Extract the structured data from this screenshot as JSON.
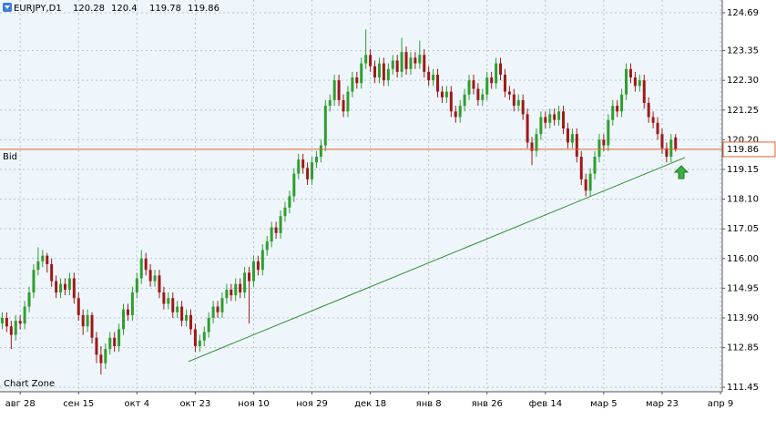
{
  "chart_data": {
    "type": "candlestick",
    "symbol": "EURJPY,D1",
    "watermark": "Chart Zone",
    "up_color": "#2f9e2f",
    "down_color": "#a01818",
    "grid": true,
    "xlim": [
      -0.5,
      160.4
    ],
    "ylim": [
      111.29,
      125.14
    ],
    "xticks": [
      {
        "value": 4,
        "label": "авг 28"
      },
      {
        "value": 17,
        "label": "сен 15"
      },
      {
        "value": 30,
        "label": "окт 4"
      },
      {
        "value": 43,
        "label": "окт 23"
      },
      {
        "value": 56,
        "label": "ноя 10"
      },
      {
        "value": 69,
        "label": "ноя 29"
      },
      {
        "value": 82,
        "label": "дек 18"
      },
      {
        "value": 95,
        "label": "янв 8"
      },
      {
        "value": 108,
        "label": "янв 26"
      },
      {
        "value": 121,
        "label": "фев 14"
      },
      {
        "value": 134,
        "label": "мар 5"
      },
      {
        "value": 147,
        "label": "мар 23"
      },
      {
        "value": 160,
        "label": "апр 9"
      }
    ],
    "yticks": [
      124.69,
      123.35,
      {
        "value": 122.3,
        "label": "122.30"
      },
      121.25,
      {
        "value": 120.2,
        "label": "120.20"
      },
      119.15,
      {
        "value": 118.1,
        "label": "118.10"
      },
      117.05,
      {
        "value": 116,
        "label": "116.00"
      },
      114.95,
      {
        "value": 113.9,
        "label": "113.90"
      },
      112.85,
      111.45
    ],
    "bid": {
      "label": "Bid",
      "value": 119.86,
      "color": "#e0632a"
    },
    "trendline": {
      "x": [
        41.5,
        152.1
      ],
      "y": [
        112.36,
        119.57
      ],
      "color": "#2e8b2e"
    },
    "candles": [
      [
        113.7,
        114.1,
        113.5,
        113.9
      ],
      [
        113.9,
        114.1,
        113.4,
        113.6
      ],
      [
        113.6,
        113.8,
        112.8,
        113.3
      ],
      [
        113.3,
        114.0,
        113.1,
        113.8
      ],
      [
        113.8,
        114.0,
        113.5,
        113.7
      ],
      [
        113.7,
        114.5,
        113.5,
        114.3
      ],
      [
        114.3,
        115.0,
        114.1,
        114.8
      ],
      [
        114.8,
        115.8,
        114.6,
        115.6
      ],
      [
        115.6,
        116.4,
        115.4,
        115.9
      ],
      [
        115.9,
        116.3,
        115.7,
        116.1
      ],
      [
        116.1,
        116.2,
        115.5,
        115.8
      ],
      [
        115.8,
        116.0,
        115.0,
        115.2
      ],
      [
        115.2,
        115.4,
        114.6,
        114.8
      ],
      [
        114.8,
        115.3,
        114.6,
        115.1
      ],
      [
        115.1,
        115.3,
        114.7,
        114.9
      ],
      [
        114.9,
        115.5,
        114.7,
        115.3
      ],
      [
        115.3,
        115.5,
        114.4,
        114.6
      ],
      [
        114.6,
        114.8,
        113.8,
        114.0
      ],
      [
        114.0,
        114.2,
        113.3,
        113.6
      ],
      [
        113.6,
        114.2,
        113.4,
        114.0
      ],
      [
        114.0,
        114.1,
        113.0,
        113.2
      ],
      [
        113.2,
        113.4,
        112.3,
        112.6
      ],
      [
        112.6,
        112.9,
        111.9,
        112.3
      ],
      [
        112.3,
        113.0,
        112.1,
        112.8
      ],
      [
        112.8,
        113.4,
        112.6,
        113.2
      ],
      [
        113.2,
        113.4,
        112.7,
        112.9
      ],
      [
        112.9,
        113.7,
        112.7,
        113.5
      ],
      [
        113.5,
        114.4,
        113.3,
        114.2
      ],
      [
        114.2,
        114.4,
        113.8,
        114.0
      ],
      [
        114.0,
        115.0,
        113.8,
        114.8
      ],
      [
        114.8,
        115.5,
        114.6,
        115.3
      ],
      [
        115.3,
        116.3,
        115.1,
        116.0
      ],
      [
        116.0,
        116.2,
        115.4,
        115.6
      ],
      [
        115.6,
        115.8,
        115.0,
        115.2
      ],
      [
        115.2,
        115.6,
        115.0,
        115.4
      ],
      [
        115.4,
        115.6,
        114.6,
        114.8
      ],
      [
        114.8,
        115.0,
        114.2,
        114.4
      ],
      [
        114.4,
        114.8,
        114.2,
        114.6
      ],
      [
        114.6,
        114.8,
        113.9,
        114.1
      ],
      [
        114.1,
        114.5,
        113.9,
        114.3
      ],
      [
        114.3,
        114.5,
        113.6,
        113.8
      ],
      [
        113.8,
        114.2,
        113.6,
        114.0
      ],
      [
        114.0,
        114.2,
        113.3,
        113.5
      ],
      [
        113.5,
        113.7,
        112.7,
        112.9
      ],
      [
        112.9,
        113.3,
        112.7,
        113.1
      ],
      [
        113.1,
        113.6,
        112.9,
        113.4
      ],
      [
        113.4,
        114.1,
        113.2,
        113.9
      ],
      [
        113.9,
        114.5,
        113.7,
        114.3
      ],
      [
        114.3,
        114.5,
        113.9,
        114.1
      ],
      [
        114.1,
        114.8,
        113.9,
        114.6
      ],
      [
        114.6,
        115.1,
        114.4,
        114.9
      ],
      [
        114.9,
        115.1,
        114.5,
        114.7
      ],
      [
        114.7,
        115.3,
        114.5,
        115.1
      ],
      [
        115.1,
        115.3,
        114.6,
        114.8
      ],
      [
        114.8,
        115.7,
        114.6,
        115.5
      ],
      [
        115.5,
        115.7,
        113.7,
        115.2
      ],
      [
        115.2,
        116.1,
        115.0,
        115.9
      ],
      [
        115.9,
        116.1,
        115.4,
        115.6
      ],
      [
        115.6,
        116.5,
        115.4,
        116.3
      ],
      [
        116.3,
        116.8,
        116.1,
        116.6
      ],
      [
        116.6,
        117.3,
        116.4,
        117.1
      ],
      [
        117.1,
        117.3,
        116.7,
        116.9
      ],
      [
        116.9,
        117.7,
        116.7,
        117.5
      ],
      [
        117.5,
        118.0,
        117.3,
        117.8
      ],
      [
        117.8,
        118.4,
        117.6,
        118.2
      ],
      [
        118.2,
        119.2,
        118.0,
        119.0
      ],
      [
        119.0,
        119.7,
        118.8,
        119.5
      ],
      [
        119.5,
        119.7,
        119.0,
        119.2
      ],
      [
        119.2,
        119.4,
        118.6,
        118.8
      ],
      [
        118.8,
        119.6,
        118.6,
        119.4
      ],
      [
        119.4,
        119.8,
        119.2,
        119.6
      ],
      [
        119.6,
        120.2,
        119.4,
        120.0
      ],
      [
        120.0,
        121.6,
        119.8,
        121.4
      ],
      [
        121.4,
        121.8,
        121.2,
        121.6
      ],
      [
        121.6,
        122.5,
        121.4,
        122.3
      ],
      [
        122.3,
        122.5,
        121.4,
        121.6
      ],
      [
        121.6,
        121.8,
        121.0,
        121.2
      ],
      [
        121.2,
        122.1,
        121.0,
        121.9
      ],
      [
        121.9,
        122.6,
        121.7,
        122.4
      ],
      [
        122.4,
        122.6,
        122.0,
        122.2
      ],
      [
        122.2,
        123.1,
        122.0,
        122.9
      ],
      [
        122.9,
        124.1,
        122.7,
        123.2
      ],
      [
        123.2,
        123.4,
        122.6,
        122.8
      ],
      [
        122.8,
        123.0,
        122.2,
        122.4
      ],
      [
        122.4,
        123.1,
        122.2,
        122.9
      ],
      [
        122.9,
        123.1,
        122.1,
        122.3
      ],
      [
        122.3,
        122.9,
        122.1,
        122.7
      ],
      [
        122.7,
        123.2,
        122.5,
        123.0
      ],
      [
        123.0,
        123.2,
        122.4,
        122.6
      ],
      [
        122.6,
        123.8,
        122.4,
        123.3
      ],
      [
        123.3,
        123.5,
        122.5,
        122.7
      ],
      [
        122.7,
        123.3,
        122.5,
        123.1
      ],
      [
        123.1,
        123.3,
        122.7,
        122.9
      ],
      [
        122.9,
        123.7,
        122.7,
        123.2
      ],
      [
        123.2,
        123.4,
        122.4,
        122.6
      ],
      [
        122.6,
        122.8,
        122.1,
        122.3
      ],
      [
        122.3,
        122.7,
        122.1,
        122.5
      ],
      [
        122.5,
        122.7,
        121.7,
        121.9
      ],
      [
        121.9,
        122.1,
        121.5,
        121.7
      ],
      [
        121.7,
        122.1,
        121.5,
        121.9
      ],
      [
        121.9,
        122.1,
        121.0,
        121.2
      ],
      [
        121.2,
        121.4,
        120.8,
        121.0
      ],
      [
        121.0,
        121.6,
        120.8,
        121.4
      ],
      [
        121.4,
        122.0,
        121.2,
        121.8
      ],
      [
        121.8,
        122.5,
        121.6,
        122.3
      ],
      [
        122.3,
        122.5,
        121.8,
        122.0
      ],
      [
        122.0,
        122.2,
        121.4,
        121.6
      ],
      [
        121.6,
        122.0,
        121.4,
        121.8
      ],
      [
        121.8,
        122.6,
        121.6,
        122.4
      ],
      [
        122.4,
        122.6,
        122.0,
        122.2
      ],
      [
        122.2,
        123.1,
        122.0,
        122.9
      ],
      [
        122.9,
        123.1,
        122.3,
        122.5
      ],
      [
        122.5,
        122.7,
        121.7,
        121.9
      ],
      [
        121.9,
        122.1,
        121.6,
        121.8
      ],
      [
        121.8,
        122.0,
        121.2,
        121.4
      ],
      [
        121.4,
        121.8,
        121.2,
        121.6
      ],
      [
        121.6,
        121.8,
        120.9,
        121.1
      ],
      [
        121.1,
        121.3,
        119.9,
        120.1
      ],
      [
        120.1,
        120.3,
        119.3,
        119.8
      ],
      [
        119.8,
        120.6,
        119.6,
        120.4
      ],
      [
        120.4,
        121.2,
        120.2,
        121.0
      ],
      [
        121.0,
        121.2,
        120.6,
        120.8
      ],
      [
        120.8,
        121.3,
        120.6,
        121.1
      ],
      [
        121.1,
        121.3,
        120.7,
        120.9
      ],
      [
        120.9,
        121.4,
        120.7,
        121.2
      ],
      [
        121.2,
        121.4,
        120.4,
        120.6
      ],
      [
        120.6,
        120.8,
        119.9,
        120.1
      ],
      [
        120.1,
        120.6,
        119.9,
        120.4
      ],
      [
        120.4,
        120.6,
        119.4,
        119.6
      ],
      [
        119.6,
        119.8,
        118.6,
        118.8
      ],
      [
        118.8,
        119.0,
        118.2,
        118.4
      ],
      [
        118.4,
        119.2,
        118.2,
        119.0
      ],
      [
        119.0,
        119.8,
        118.8,
        119.6
      ],
      [
        119.6,
        120.4,
        119.4,
        120.2
      ],
      [
        120.2,
        120.4,
        119.8,
        120.0
      ],
      [
        120.0,
        121.1,
        119.8,
        120.9
      ],
      [
        120.9,
        121.6,
        120.7,
        121.4
      ],
      [
        121.4,
        121.6,
        121.0,
        121.2
      ],
      [
        121.2,
        122.0,
        121.0,
        121.8
      ],
      [
        121.8,
        122.9,
        121.6,
        122.7
      ],
      [
        122.7,
        122.9,
        122.2,
        122.4
      ],
      [
        122.4,
        122.6,
        121.9,
        122.1
      ],
      [
        122.1,
        122.5,
        121.9,
        122.3
      ],
      [
        122.3,
        122.5,
        121.3,
        121.5
      ],
      [
        121.5,
        121.7,
        120.8,
        121.0
      ],
      [
        121.0,
        121.2,
        120.6,
        120.8
      ],
      [
        120.8,
        121.0,
        120.2,
        120.4
      ],
      [
        120.4,
        120.6,
        119.7,
        119.9
      ],
      [
        119.9,
        120.1,
        119.4,
        119.6
      ],
      [
        119.6,
        120.4,
        119.4,
        120.2
      ],
      [
        120.28,
        120.4,
        119.78,
        119.86
      ]
    ]
  }
}
